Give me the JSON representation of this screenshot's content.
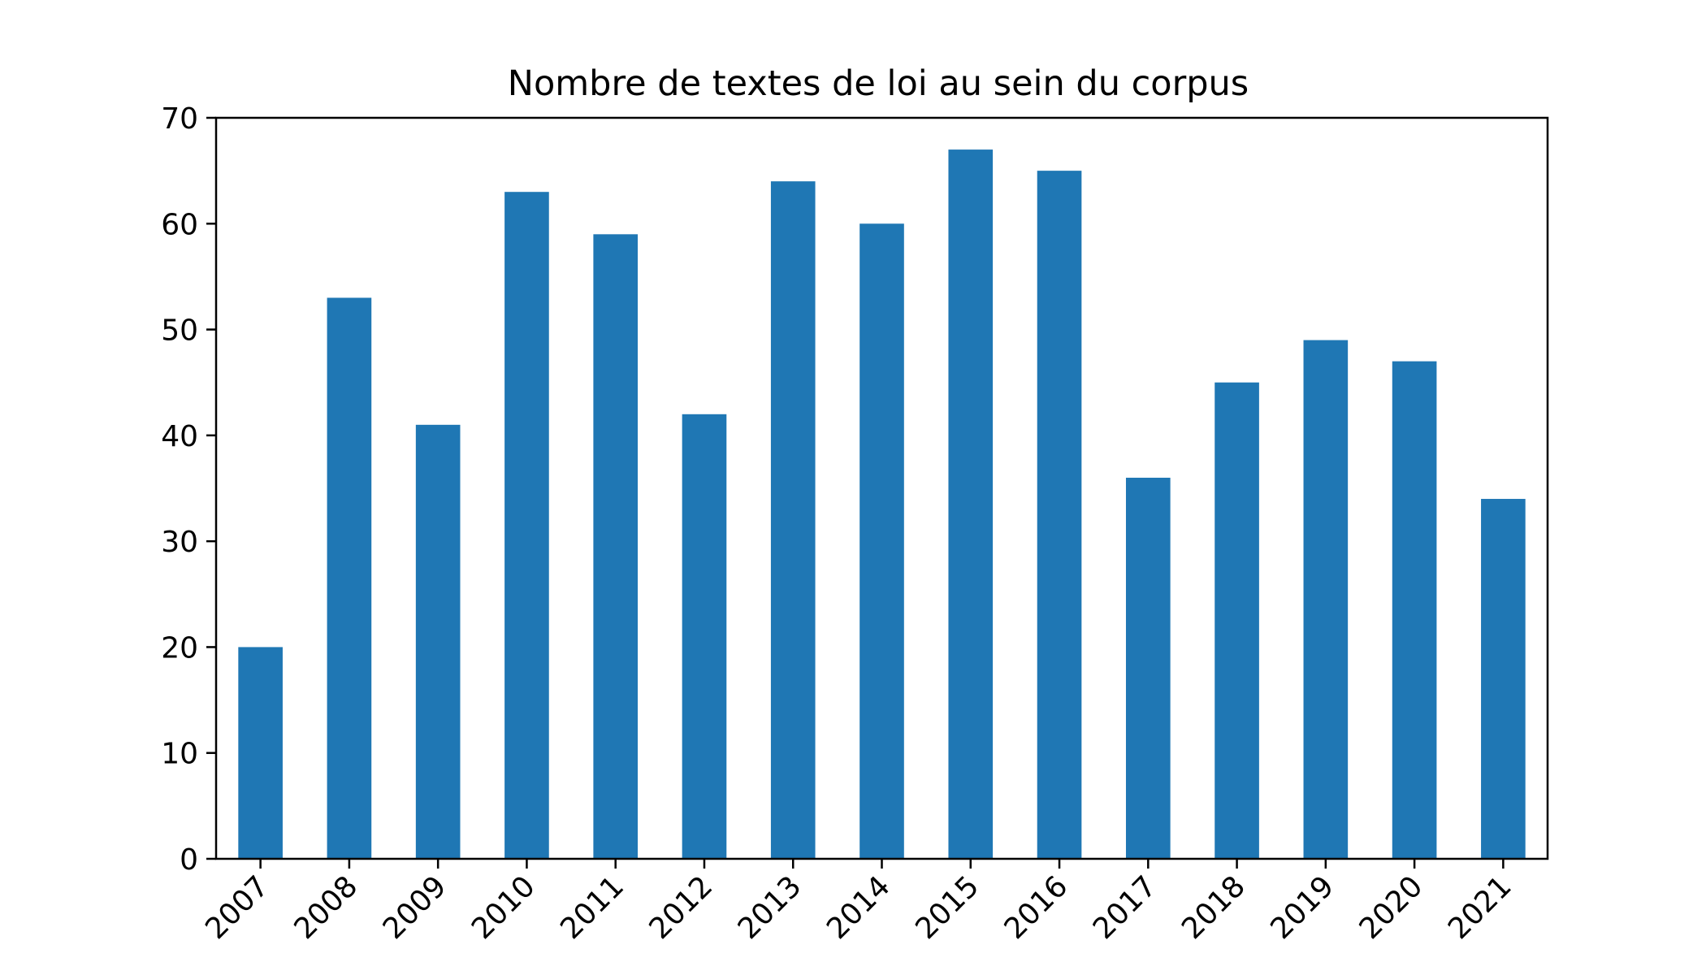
{
  "chart_data": {
    "type": "bar",
    "title": "Nombre de textes de loi au sein du corpus",
    "xlabel": "",
    "ylabel": "",
    "categories": [
      "2007",
      "2008",
      "2009",
      "2010",
      "2011",
      "2012",
      "2013",
      "2014",
      "2015",
      "2016",
      "2017",
      "2018",
      "2019",
      "2020",
      "2021"
    ],
    "values": [
      20,
      53,
      41,
      63,
      59,
      42,
      64,
      60,
      67,
      65,
      36,
      45,
      49,
      47,
      34
    ],
    "ylim": [
      0,
      70
    ],
    "yticks": [
      0,
      10,
      20,
      30,
      40,
      50,
      60,
      70
    ],
    "grid": false,
    "legend": "none",
    "bar_color": "#1f77b4"
  }
}
